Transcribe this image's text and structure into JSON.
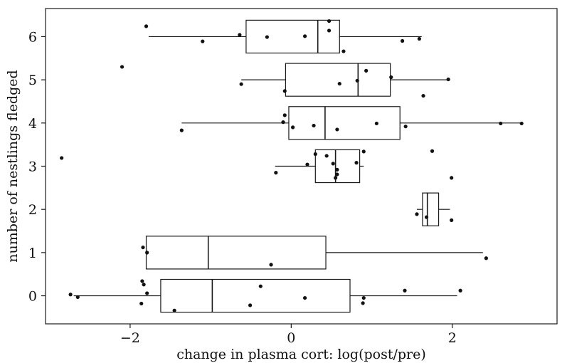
{
  "chart_data": {
    "type": "box",
    "orientation": "horizontal",
    "title": "",
    "xlabel": "change in plasma cort: log(post/pre)",
    "ylabel": "number of nestlings fledged",
    "xlim": [
      -3.05,
      3.3
    ],
    "ylim": [
      -0.65,
      6.65
    ],
    "xticks": [
      -2,
      0,
      2
    ],
    "xtick_labels": [
      "−2",
      "0",
      "2"
    ],
    "yticks": [
      0,
      1,
      2,
      3,
      4,
      5,
      6
    ],
    "ytick_labels": [
      "0",
      "1",
      "2",
      "3",
      "4",
      "5",
      "6"
    ],
    "grid": false,
    "groups": [
      {
        "category": "0",
        "box": {
          "whisker_low": -2.7,
          "q1": -1.62,
          "median": -0.98,
          "q3": 0.73,
          "whisker_high": 2.06
        },
        "points": [
          [
            -2.74,
            0.03
          ],
          [
            -2.65,
            -0.03
          ],
          [
            -1.85,
            0.34
          ],
          [
            -1.83,
            0.26
          ],
          [
            -1.79,
            0.06
          ],
          [
            -1.86,
            -0.18
          ],
          [
            -1.45,
            -0.34
          ],
          [
            -0.38,
            0.22
          ],
          [
            -0.51,
            -0.22
          ],
          [
            0.17,
            -0.05
          ],
          [
            0.9,
            -0.05
          ],
          [
            0.89,
            -0.17
          ],
          [
            1.41,
            0.12
          ],
          [
            2.1,
            0.12
          ]
        ]
      },
      {
        "category": "1",
        "box": {
          "whisker_low": -1.8,
          "q1": -1.8,
          "median": -1.03,
          "q3": 0.43,
          "whisker_high": 2.38
        },
        "points": [
          [
            -1.84,
            1.12
          ],
          [
            -1.79,
            1.0
          ],
          [
            -0.25,
            0.72
          ],
          [
            2.42,
            0.87
          ]
        ]
      },
      {
        "category": "2",
        "box": {
          "whisker_low": 1.56,
          "q1": 1.63,
          "median": 1.69,
          "q3": 1.83,
          "whisker_high": 1.97
        },
        "points": [
          [
            1.56,
            1.89
          ],
          [
            1.68,
            1.82
          ],
          [
            1.99,
            1.75
          ]
        ]
      },
      {
        "category": "3",
        "box": {
          "whisker_low": -0.2,
          "q1": 0.3,
          "median": 0.55,
          "q3": 0.85,
          "whisker_high": 0.9
        },
        "points": [
          [
            -2.85,
            3.19
          ],
          [
            -0.19,
            2.85
          ],
          [
            0.2,
            3.04
          ],
          [
            0.3,
            3.28
          ],
          [
            0.44,
            3.24
          ],
          [
            0.52,
            3.06
          ],
          [
            0.57,
            2.92
          ],
          [
            0.57,
            2.81
          ],
          [
            0.55,
            2.73
          ],
          [
            0.81,
            3.08
          ],
          [
            0.9,
            3.34
          ],
          [
            1.75,
            3.35
          ],
          [
            1.99,
            2.73
          ]
        ]
      },
      {
        "category": "4",
        "box": {
          "whisker_low": -1.36,
          "q1": -0.03,
          "median": 0.42,
          "q3": 1.35,
          "whisker_high": 2.85
        },
        "points": [
          [
            -1.36,
            3.83
          ],
          [
            -0.1,
            4.02
          ],
          [
            -0.08,
            4.18
          ],
          [
            0.02,
            3.9
          ],
          [
            0.28,
            3.94
          ],
          [
            0.57,
            3.85
          ],
          [
            1.06,
            3.99
          ],
          [
            1.42,
            3.92
          ],
          [
            2.6,
            3.99
          ],
          [
            2.86,
            3.99
          ]
        ]
      },
      {
        "category": "5",
        "box": {
          "whisker_low": -0.62,
          "q1": -0.07,
          "median": 0.83,
          "q3": 1.23,
          "whisker_high": 1.95
        },
        "points": [
          [
            -2.1,
            5.3
          ],
          [
            -0.62,
            4.9
          ],
          [
            -0.08,
            4.74
          ],
          [
            0.6,
            4.91
          ],
          [
            0.82,
            4.98
          ],
          [
            0.93,
            5.21
          ],
          [
            1.24,
            5.06
          ],
          [
            1.64,
            4.63
          ],
          [
            1.95,
            5.01
          ]
        ]
      },
      {
        "category": "6",
        "box": {
          "whisker_low": -1.77,
          "q1": -0.56,
          "median": 0.33,
          "q3": 0.6,
          "whisker_high": 1.62
        },
        "points": [
          [
            -1.8,
            6.24
          ],
          [
            -1.1,
            5.89
          ],
          [
            -0.64,
            6.04
          ],
          [
            -0.3,
            5.99
          ],
          [
            0.17,
            6.01
          ],
          [
            0.47,
            6.36
          ],
          [
            0.47,
            6.14
          ],
          [
            0.65,
            5.66
          ],
          [
            1.38,
            5.9
          ],
          [
            1.59,
            5.95
          ]
        ]
      }
    ]
  }
}
